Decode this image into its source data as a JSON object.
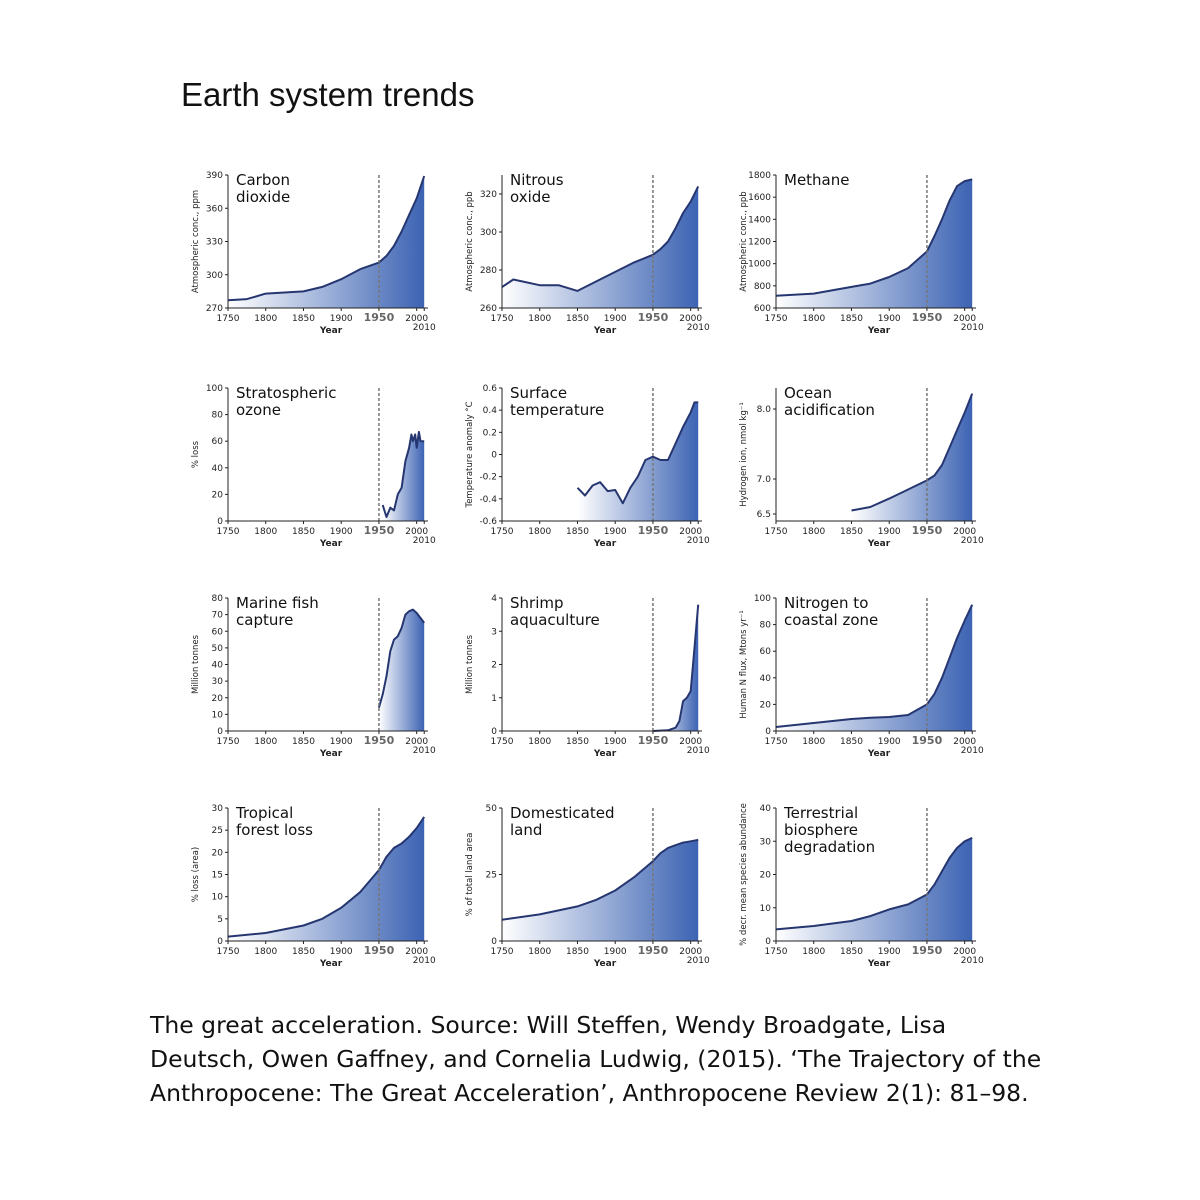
{
  "title": "Earth system trends",
  "caption": "The great acceleration. Source: Will Steffen, Wendy Broadgate, Lisa Deutsch, Owen Gaffney, and Cornelia Ludwig, (2015). ‘The Trajectory of the Anthropocene: The Great Acceleration’, Anthropocene Review 2(1): 81–98.",
  "chart_data": [
    {
      "type": "area",
      "title": "Carbon\ndioxide",
      "y_label": "Atmospheric conc., ppm",
      "x_label": "Year",
      "x": [
        1750,
        1775,
        1800,
        1825,
        1850,
        1875,
        1900,
        1925,
        1950,
        1960,
        1970,
        1980,
        1990,
        2000,
        2010
      ],
      "values": [
        277,
        278,
        283,
        284,
        285,
        289,
        296,
        305,
        311,
        317,
        326,
        339,
        354,
        369,
        389
      ],
      "xlim": [
        1750,
        2015
      ],
      "xticks": [
        1750,
        1800,
        1850,
        1900,
        1950,
        2000,
        2010
      ],
      "reference_x": 1950,
      "ylim": [
        270,
        390
      ],
      "yticks": [
        270,
        300,
        330,
        360,
        390
      ],
      "line_color": "#263670",
      "fill_color": "#3c63b3"
    },
    {
      "type": "area",
      "title": "Nitrous\noxide",
      "y_label": "Atmospheric conc., ppb",
      "x_label": "Year",
      "x": [
        1750,
        1765,
        1800,
        1825,
        1850,
        1875,
        1900,
        1925,
        1950,
        1960,
        1970,
        1980,
        1990,
        2000,
        2010
      ],
      "values": [
        271,
        275,
        272,
        272,
        269,
        274,
        279,
        284,
        288,
        291,
        295,
        302,
        310,
        316,
        324
      ],
      "xlim": [
        1750,
        2015
      ],
      "xticks": [
        1750,
        1800,
        1850,
        1900,
        1950,
        2000,
        2010
      ],
      "reference_x": 1950,
      "ylim": [
        260,
        330
      ],
      "yticks": [
        260,
        280,
        300,
        320
      ],
      "line_color": "#263670",
      "fill_color": "#3c63b3"
    },
    {
      "type": "area",
      "title": "Methane",
      "y_label": "Atmospheric conc., ppb",
      "x_label": "Year",
      "x": [
        1750,
        1800,
        1850,
        1875,
        1900,
        1925,
        1950,
        1960,
        1970,
        1980,
        1990,
        2000,
        2010
      ],
      "values": [
        710,
        730,
        790,
        820,
        880,
        960,
        1110,
        1250,
        1400,
        1570,
        1700,
        1745,
        1760
      ],
      "xlim": [
        1750,
        2015
      ],
      "xticks": [
        1750,
        1800,
        1850,
        1900,
        1950,
        2000,
        2010
      ],
      "reference_x": 1950,
      "ylim": [
        600,
        1800
      ],
      "yticks": [
        600,
        800,
        1000,
        1200,
        1400,
        1600,
        1800
      ],
      "line_color": "#263670",
      "fill_color": "#3c63b3"
    },
    {
      "type": "area",
      "title": "Stratospheric\nozone",
      "y_label": "% loss",
      "x_label": "Year",
      "x": [
        1955,
        1960,
        1965,
        1970,
        1975,
        1980,
        1985,
        1990,
        1993,
        1995,
        1998,
        2000,
        2003,
        2005,
        2010
      ],
      "values": [
        12,
        3,
        10,
        8,
        20,
        25,
        45,
        55,
        65,
        60,
        65,
        55,
        67,
        60,
        60
      ],
      "xlim": [
        1750,
        2015
      ],
      "xticks": [
        1750,
        1800,
        1850,
        1900,
        1950,
        2000,
        2010
      ],
      "reference_x": 1950,
      "ylim": [
        0,
        100
      ],
      "yticks": [
        0,
        20,
        40,
        60,
        80,
        100
      ],
      "line_color": "#263670",
      "fill_color": "#3c63b3"
    },
    {
      "type": "area",
      "title": "Surface\ntemperature",
      "y_label": "Temperature anomaly °C",
      "x_label": "Year",
      "x": [
        1850,
        1860,
        1870,
        1880,
        1890,
        1900,
        1910,
        1920,
        1930,
        1940,
        1950,
        1960,
        1970,
        1980,
        1990,
        2000,
        2005,
        2010
      ],
      "values": [
        -0.3,
        -0.37,
        -0.28,
        -0.25,
        -0.33,
        -0.32,
        -0.44,
        -0.3,
        -0.2,
        -0.05,
        -0.02,
        -0.05,
        -0.05,
        0.1,
        0.25,
        0.38,
        0.47,
        0.47
      ],
      "xlim": [
        1750,
        2015
      ],
      "xticks": [
        1750,
        1800,
        1850,
        1900,
        1950,
        2000,
        2010
      ],
      "reference_x": 1950,
      "ylim": [
        -0.6,
        0.6
      ],
      "yticks": [
        -0.6,
        -0.4,
        -0.2,
        0,
        0.2,
        0.4,
        0.6
      ],
      "line_color": "#263670",
      "fill_color": "#3c63b3"
    },
    {
      "type": "area",
      "title": "Ocean\nacidification",
      "y_label": "Hydrogen ion, nmol kg⁻¹",
      "x_label": "Year",
      "x": [
        1850,
        1875,
        1900,
        1925,
        1950,
        1960,
        1970,
        1980,
        1990,
        2000,
        2010
      ],
      "values": [
        6.55,
        6.6,
        6.72,
        6.85,
        6.98,
        7.05,
        7.2,
        7.45,
        7.7,
        7.95,
        8.22
      ],
      "xlim": [
        1750,
        2015
      ],
      "xticks": [
        1750,
        1800,
        1850,
        1900,
        1950,
        2000,
        2010
      ],
      "reference_x": 1950,
      "ylim": [
        6.4,
        8.3
      ],
      "yticks": [
        6.5,
        {
          "value": 7,
          "label": "7.0"
        },
        {
          "value": 8,
          "label": "8.0"
        }
      ],
      "line_color": "#263670",
      "fill_color": "#3c63b3"
    },
    {
      "type": "area",
      "title": "Marine fish\ncapture",
      "y_label": "Million tonnes",
      "x_label": "Year",
      "x": [
        1950,
        1955,
        1960,
        1965,
        1970,
        1975,
        1980,
        1985,
        1990,
        1995,
        2000,
        2005,
        2010
      ],
      "values": [
        14,
        22,
        33,
        48,
        55,
        57,
        62,
        70,
        72,
        73,
        71,
        68,
        65
      ],
      "xlim": [
        1750,
        2015
      ],
      "xticks": [
        1750,
        1800,
        1850,
        1900,
        1950,
        2000,
        2010
      ],
      "reference_x": 1950,
      "ylim": [
        0,
        80
      ],
      "yticks": [
        0,
        10,
        20,
        30,
        40,
        50,
        60,
        70,
        80
      ],
      "line_color": "#263670",
      "fill_color": "#3c63b3"
    },
    {
      "type": "area",
      "title": "Shrimp\naquaculture",
      "y_label": "Million tonnes",
      "x_label": "Year",
      "x": [
        1950,
        1970,
        1980,
        1985,
        1990,
        1995,
        2000,
        2005,
        2010
      ],
      "values": [
        0,
        0.02,
        0.1,
        0.3,
        0.9,
        1,
        1.2,
        2.5,
        3.8
      ],
      "xlim": [
        1750,
        2015
      ],
      "xticks": [
        1750,
        1800,
        1850,
        1900,
        1950,
        2000,
        2010
      ],
      "reference_x": 1950,
      "ylim": [
        0,
        4
      ],
      "yticks": [
        0,
        1,
        2,
        3,
        4
      ],
      "line_color": "#263670",
      "fill_color": "#3c63b3"
    },
    {
      "type": "area",
      "title": "Nitrogen to\ncoastal zone",
      "y_label": "Human N flux, Mtons yr⁻¹",
      "x_label": "Year",
      "x": [
        1750,
        1800,
        1850,
        1875,
        1900,
        1925,
        1950,
        1960,
        1970,
        1980,
        1990,
        2000,
        2010
      ],
      "values": [
        3,
        6,
        9,
        10,
        10.5,
        12,
        20,
        28,
        40,
        55,
        70,
        83,
        95
      ],
      "xlim": [
        1750,
        2015
      ],
      "xticks": [
        1750,
        1800,
        1850,
        1900,
        1950,
        2000,
        2010
      ],
      "reference_x": 1950,
      "ylim": [
        0,
        100
      ],
      "yticks": [
        0,
        20,
        40,
        60,
        80,
        100
      ],
      "line_color": "#263670",
      "fill_color": "#3c63b3"
    },
    {
      "type": "area",
      "title": "Tropical\nforest loss",
      "y_label": "% loss (area)",
      "x_label": "Year",
      "x": [
        1750,
        1800,
        1850,
        1875,
        1900,
        1925,
        1950,
        1960,
        1970,
        1980,
        1990,
        2000,
        2010
      ],
      "values": [
        1,
        1.8,
        3.5,
        5,
        7.5,
        11,
        16,
        19,
        21,
        22,
        23.5,
        25.5,
        28
      ],
      "xlim": [
        1750,
        2015
      ],
      "xticks": [
        1750,
        1800,
        1850,
        1900,
        1950,
        2000,
        2010
      ],
      "reference_x": 1950,
      "ylim": [
        0,
        30
      ],
      "yticks": [
        0,
        5,
        10,
        15,
        20,
        25,
        30
      ],
      "line_color": "#263670",
      "fill_color": "#3c63b3"
    },
    {
      "type": "area",
      "title": "Domesticated\nland",
      "y_label": "% of total land area",
      "x_label": "Year",
      "x": [
        1750,
        1800,
        1850,
        1875,
        1900,
        1925,
        1950,
        1960,
        1970,
        1980,
        1990,
        2000,
        2010
      ],
      "values": [
        8,
        10,
        13,
        15.5,
        19,
        24,
        30,
        33,
        35,
        36,
        37,
        37.5,
        38
      ],
      "xlim": [
        1750,
        2015
      ],
      "xticks": [
        1750,
        1800,
        1850,
        1900,
        1950,
        2000,
        2010
      ],
      "reference_x": 1950,
      "ylim": [
        0,
        50
      ],
      "yticks": [
        0,
        25,
        50
      ],
      "line_color": "#263670",
      "fill_color": "#3c63b3"
    },
    {
      "type": "area",
      "title": "Terrestrial\nbiosphere\ndegradation",
      "y_label": "% decr. mean species abundance",
      "x_label": "Year",
      "x": [
        1750,
        1800,
        1850,
        1875,
        1900,
        1925,
        1950,
        1960,
        1970,
        1980,
        1990,
        2000,
        2010
      ],
      "values": [
        3.5,
        4.5,
        6,
        7.5,
        9.5,
        11,
        14,
        17,
        21,
        25,
        28,
        30,
        31
      ],
      "xlim": [
        1750,
        2015
      ],
      "xticks": [
        1750,
        1800,
        1850,
        1900,
        1950,
        2000,
        2010
      ],
      "reference_x": 1950,
      "ylim": [
        0,
        40
      ],
      "yticks": [
        0,
        10,
        20,
        30,
        40
      ],
      "line_color": "#263670",
      "fill_color": "#3c63b3"
    }
  ]
}
